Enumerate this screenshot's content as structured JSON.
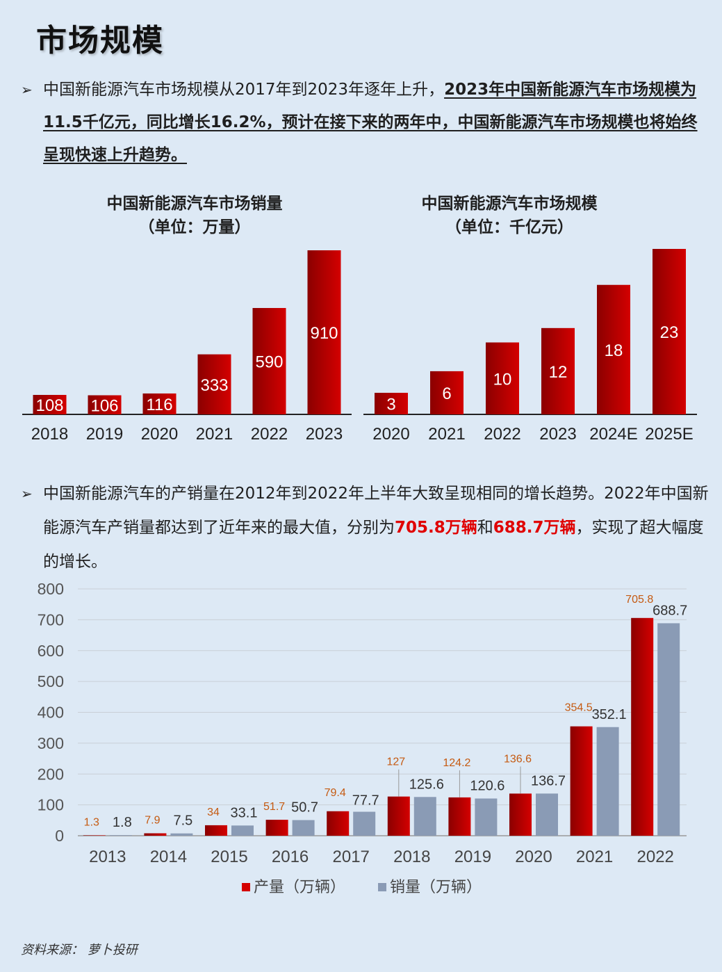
{
  "page": {
    "title": "市场规模",
    "para1_a": "中国新能源汽车市场规模从2017年到2023年逐年上升，",
    "para1_b": "2023年中国新能源汽车市场规模为11.5千亿元，同比增长16.2%，预计在接下来的两年中，中国新能源汽车市场规模也将始终呈现快速上升趋势。",
    "para2_a": "中国新能源汽车的产销量在2012年到2022年上半年大致呈现相同的增长趋势。2022年中国新能源汽车产销量都达到了近年来的最大值，分别为",
    "para2_b": "705.8万辆",
    "para2_c": "和",
    "para2_d": "688.7万辆",
    "para2_e": "，实现了超大幅度的增长。",
    "source": "资料来源：  萝卜投研"
  },
  "chart1": {
    "title": "中国新能源汽车市场销量",
    "subtitle": "（单位：万量）"
  },
  "chart2": {
    "title": "中国新能源汽车市场规模",
    "subtitle": "（单位：千亿元）"
  },
  "colors": {
    "bar_red_dark": "#8b0000",
    "bar_red_light": "#d40000",
    "bar_gray": "#8a9bb5",
    "label_orange": "#c55a11",
    "background": "#dde9f5"
  },
  "chart_data": [
    {
      "type": "bar",
      "title": "中国新能源汽车市场销量",
      "subtitle": "（单位：万量）",
      "categories": [
        "2018",
        "2019",
        "2020",
        "2021",
        "2022",
        "2023"
      ],
      "values": [
        108,
        106,
        116,
        333,
        590,
        910
      ]
    },
    {
      "type": "bar",
      "title": "中国新能源汽车市场规模",
      "subtitle": "（单位：千亿元）",
      "categories": [
        "2020",
        "2021",
        "2022",
        "2023",
        "2024E",
        "2025E"
      ],
      "values": [
        3,
        6,
        10,
        12,
        18,
        23
      ]
    },
    {
      "type": "bar",
      "categories": [
        "2013",
        "2014",
        "2015",
        "2016",
        "2017",
        "2018",
        "2019",
        "2020",
        "2021",
        "2022"
      ],
      "series": [
        {
          "name": "产量（万辆）",
          "values": [
            1.3,
            7.9,
            34,
            51.7,
            79.4,
            127,
            124.2,
            136.6,
            354.5,
            705.8
          ]
        },
        {
          "name": "销量（万辆）",
          "values": [
            1.8,
            7.5,
            33.1,
            50.7,
            77.7,
            125.6,
            120.6,
            136.7,
            352.1,
            688.7
          ]
        }
      ],
      "ylim": [
        0,
        800
      ],
      "yticks": [
        0,
        100,
        200,
        300,
        400,
        500,
        600,
        700,
        800
      ],
      "grid": true,
      "legend": "bottom"
    }
  ]
}
